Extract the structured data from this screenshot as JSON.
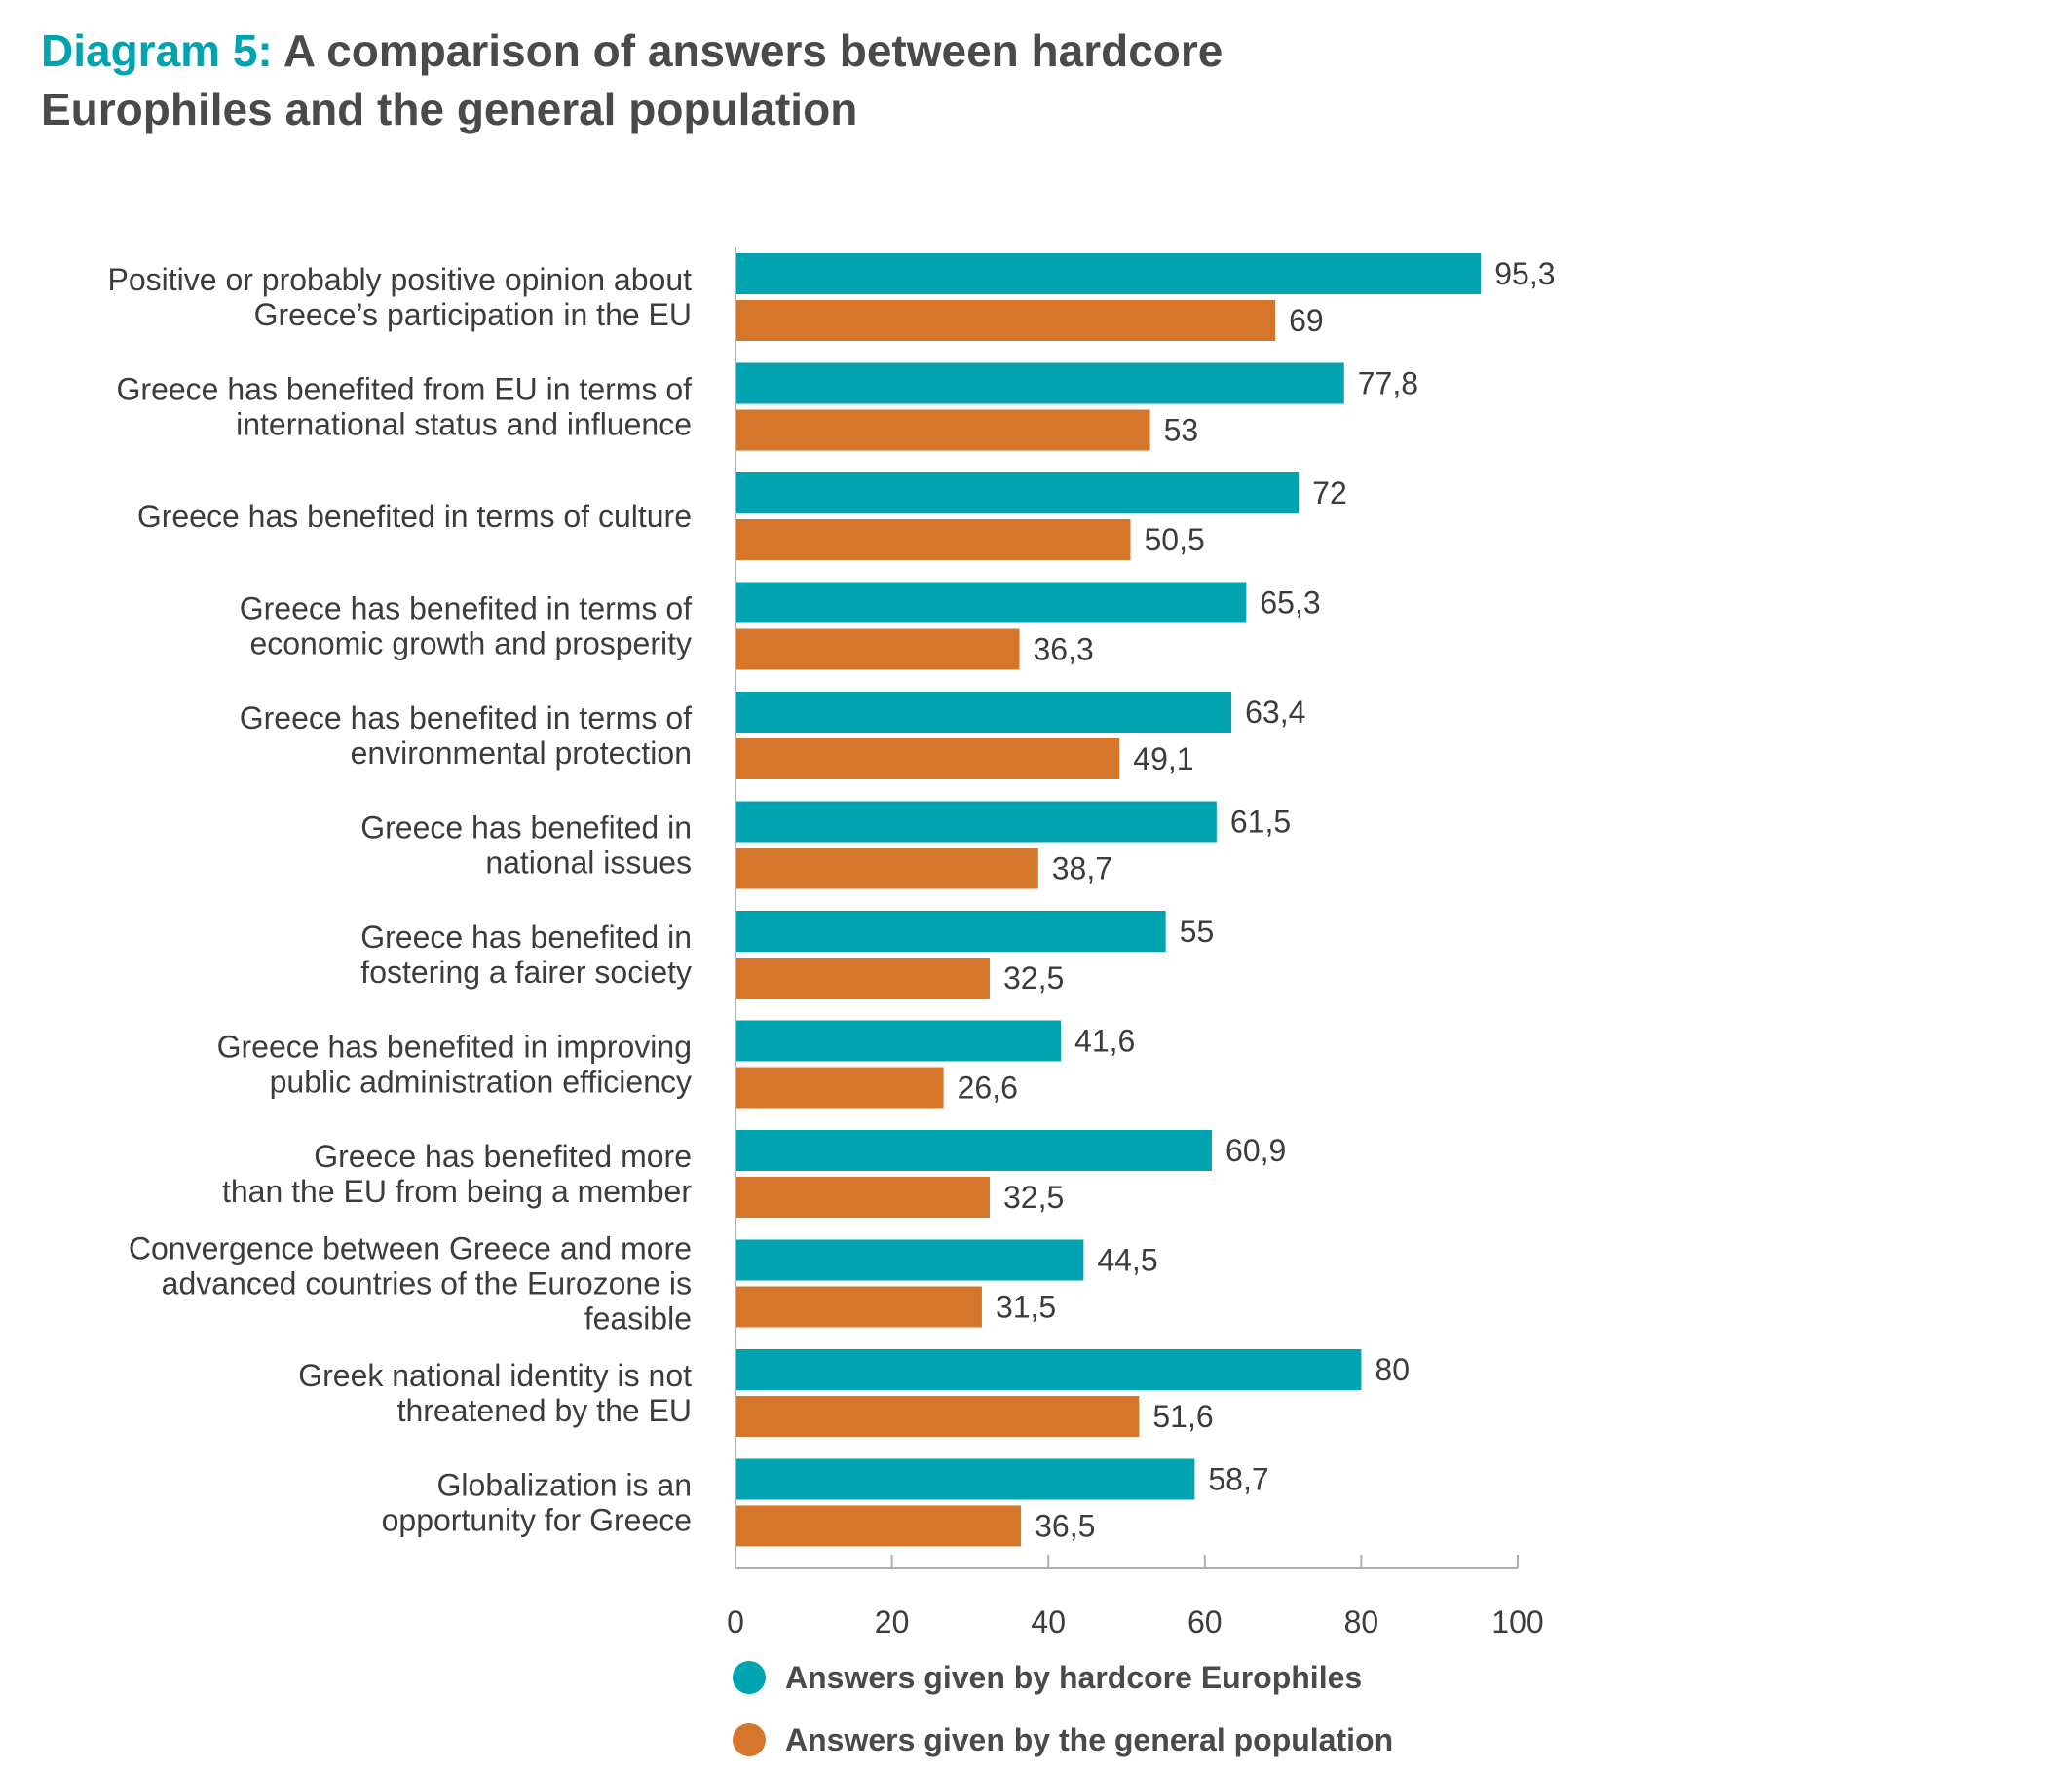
{
  "header": {
    "title_prefix": "Diagram 5:",
    "title_line1": "A comparison of answers between hardcore",
    "title_line2": "Europhiles and the general population"
  },
  "colors": {
    "europhiles": "#00a3b0",
    "general": "#d6762a",
    "axis": "#b0b0b0",
    "text": "#3c3c3c"
  },
  "chart_data": {
    "type": "bar",
    "orientation": "horizontal",
    "categories": [
      [
        "Positive or probably positive opinion about",
        "Greece’s participation in the EU"
      ],
      [
        "Greece has benefited from EU in terms of",
        "international status and influence"
      ],
      [
        "Greece has benefited in terms of culture"
      ],
      [
        "Greece has benefited in terms of",
        "economic growth and prosperity"
      ],
      [
        "Greece has benefited in terms of",
        "environmental protection"
      ],
      [
        "Greece has benefited in",
        "national issues"
      ],
      [
        "Greece has benefited in",
        "fostering a fairer society"
      ],
      [
        "Greece has benefited in improving",
        "public administration efficiency"
      ],
      [
        "Greece has benefited more",
        "than the EU from being a member"
      ],
      [
        "Convergence between Greece and more",
        "advanced countries of the Eurozone is",
        "feasible"
      ],
      [
        "Greek national identity is not",
        "threatened by the EU"
      ],
      [
        "Globalization is an",
        "opportunity for Greece"
      ]
    ],
    "series": [
      {
        "name": "Answers given by hardcore Europhiles",
        "values": [
          95.3,
          77.8,
          72,
          65.3,
          63.4,
          61.5,
          55,
          41.6,
          60.9,
          44.5,
          80,
          58.7
        ],
        "labels": [
          "95,3",
          "77,8",
          "72",
          "65,3",
          "63,4",
          "61,5",
          "55",
          "41,6",
          "60,9",
          "44,5",
          "80",
          "58,7"
        ]
      },
      {
        "name": "Answers given by the general population",
        "values": [
          69,
          53,
          50.5,
          36.3,
          49.1,
          38.7,
          32.5,
          26.6,
          32.5,
          31.5,
          51.6,
          36.5
        ],
        "labels": [
          "69",
          "53",
          "50,5",
          "36,3",
          "49,1",
          "38,7",
          "32,5",
          "26,6",
          "32,5",
          "31,5",
          "51,6",
          "36,5"
        ]
      }
    ],
    "xlim": [
      0,
      100
    ],
    "xticks": [
      0,
      20,
      40,
      60,
      80,
      100
    ],
    "xtick_labels": [
      "0",
      "20",
      "40",
      "60",
      "80",
      "100"
    ],
    "grid": false,
    "legend_position": "bottom-left"
  }
}
